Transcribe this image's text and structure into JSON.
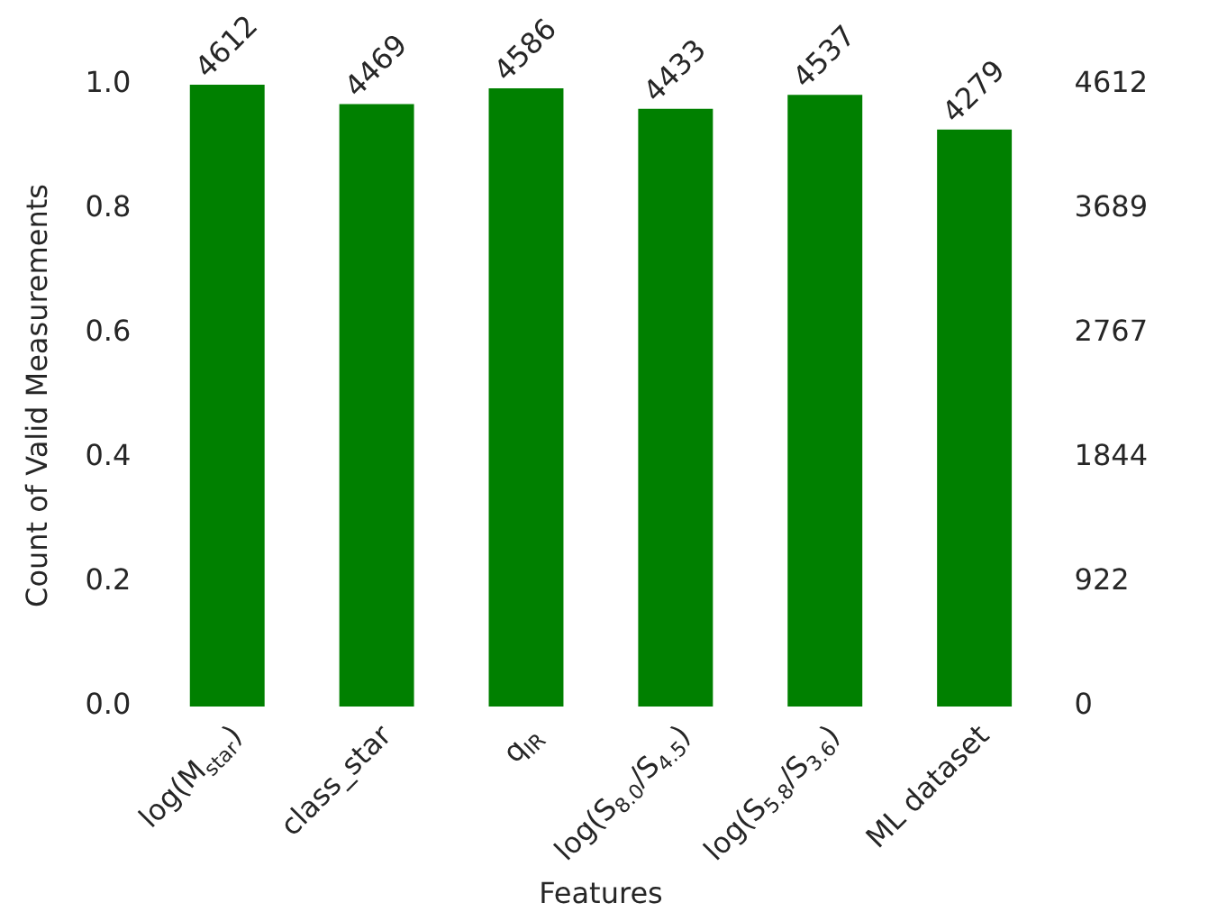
{
  "chart_data": {
    "type": "bar",
    "xlabel": "Features",
    "ylabel": "Count of Valid Measurements",
    "categories": [
      "log(M$_{star}$)",
      "class_star",
      "q$_{IR}$",
      "log(S$_{8.0}$/S$_{4.5}$)",
      "log(S$_{5.8}$/S$_{3.6}$)",
      "ML dataset"
    ],
    "series": [
      {
        "color": "#008000",
        "axis": "y2",
        "values": [
          4612,
          4469,
          4586,
          4433,
          4537,
          4279
        ]
      }
    ],
    "ylim": [
      0,
      1
    ],
    "yticks": [
      {
        "value": 0,
        "label": "0.0"
      },
      {
        "value": 0.2,
        "label": "0.2"
      },
      {
        "value": 0.4,
        "label": "0.4"
      },
      {
        "value": 0.6,
        "label": "0.6"
      },
      {
        "value": 0.8,
        "label": "0.8"
      },
      {
        "value": 1,
        "label": "1.0"
      }
    ],
    "y2lim": [
      0,
      4612
    ],
    "y2ticks": [
      0,
      922,
      1844,
      2767,
      3689,
      4612
    ],
    "data_labels": true,
    "grid": false,
    "legend": false
  }
}
